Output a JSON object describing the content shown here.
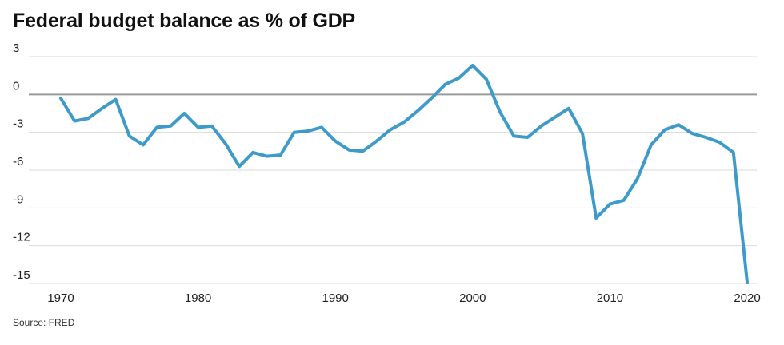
{
  "chart_data": {
    "type": "line",
    "title": "Federal budget balance as % of GDP",
    "xlabel": "",
    "ylabel": "",
    "source": "Source: FRED",
    "ylim": [
      -15,
      3
    ],
    "xlim": [
      1970,
      2020
    ],
    "y_ticks": [
      3,
      0,
      -3,
      -6,
      -9,
      -12,
      -15
    ],
    "y_tick_labels": [
      "3",
      "0",
      "-3",
      "-6",
      "-9",
      "-12",
      "-15"
    ],
    "x_ticks": [
      1970,
      1980,
      1990,
      2000,
      2010,
      2020
    ],
    "x_tick_labels": [
      "1970",
      "1980",
      "1990",
      "2000",
      "2010",
      "2020"
    ],
    "grid": "horizontal",
    "line_color": "#3d9ac9",
    "zero_line_color": "#9a9a9a",
    "grid_color": "#d9d9d9",
    "series": [
      {
        "x": [
          1970,
          1971,
          1972,
          1973,
          1974,
          1975,
          1976,
          1977,
          1978,
          1979,
          1980,
          1981,
          1982,
          1983,
          1984,
          1985,
          1986,
          1987,
          1988,
          1989,
          1990,
          1991,
          1992,
          1993,
          1994,
          1995,
          1996,
          1997,
          1998,
          1999,
          2000,
          2001,
          2002,
          2003,
          2004,
          2005,
          2006,
          2007,
          2008,
          2009,
          2010,
          2011,
          2012,
          2013,
          2014,
          2015,
          2016,
          2017,
          2018,
          2019,
          2020
        ],
        "values": [
          -0.3,
          -2.1,
          -1.9,
          -1.1,
          -0.4,
          -3.3,
          -4.0,
          -2.6,
          -2.5,
          -1.5,
          -2.6,
          -2.5,
          -3.9,
          -5.7,
          -4.6,
          -4.9,
          -4.8,
          -3.0,
          -2.9,
          -2.6,
          -3.7,
          -4.4,
          -4.5,
          -3.7,
          -2.8,
          -2.2,
          -1.3,
          -0.3,
          0.8,
          1.3,
          2.3,
          1.2,
          -1.4,
          -3.3,
          -3.4,
          -2.5,
          -1.8,
          -1.1,
          -3.1,
          -9.8,
          -8.7,
          -8.4,
          -6.7,
          -4.0,
          -2.8,
          -2.4,
          -3.1,
          -3.4,
          -3.8,
          -4.6,
          -14.9
        ]
      }
    ]
  }
}
